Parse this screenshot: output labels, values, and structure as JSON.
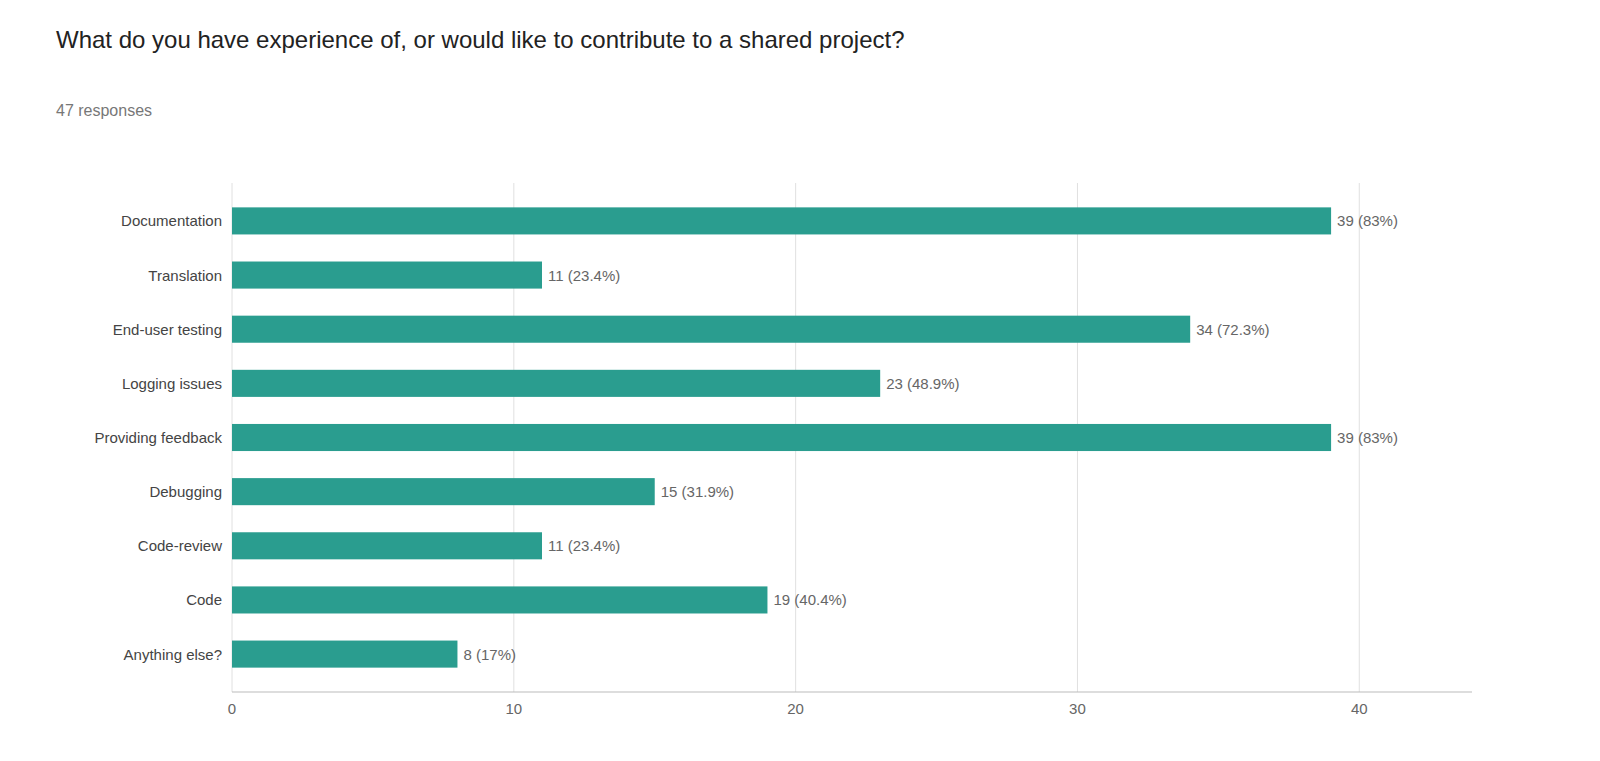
{
  "chart_data": {
    "type": "bar",
    "orientation": "horizontal",
    "title": "What do you have experience of, or would like to contribute to a shared project?",
    "subtitle": "47 responses",
    "categories": [
      "Anything else?",
      "Code",
      "Code-review",
      "Debugging",
      "Providing feedback",
      "Logging issues",
      "End-user testing",
      "Translation",
      "Documentation"
    ],
    "values": [
      8,
      19,
      11,
      15,
      39,
      23,
      34,
      11,
      39
    ],
    "value_labels": [
      "8 (17%)",
      "19 (40.4%)",
      "11 (23.4%)",
      "15 (31.9%)",
      "39 (83%)",
      "23 (48.9%)",
      "34 (72.3%)",
      "11 (23.4%)",
      "39 (83%)"
    ],
    "data_labels": true,
    "color": "#2a9d8f",
    "xlim": [
      0,
      44
    ],
    "xticks": [
      0,
      10,
      20,
      30,
      40
    ],
    "grid": true
  }
}
